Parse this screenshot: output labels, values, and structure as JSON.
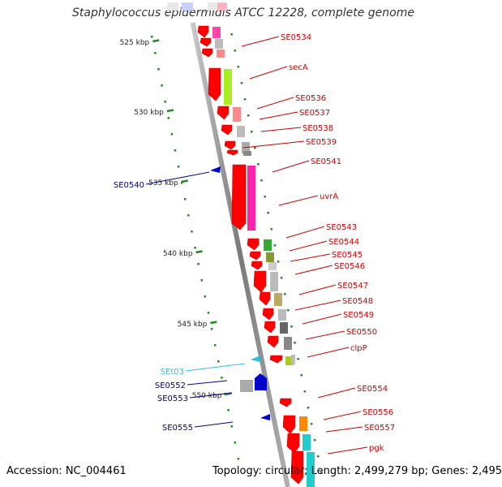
{
  "title": "Staphylococcus epidermidis ATCC 12228, complete genome",
  "footer": {
    "accession": "Accession: NC_004461",
    "summary": "Topology: circular; Length: 2,499,279 bp; Genes: 2,495"
  },
  "colors": {
    "backbone": "#8a8a8a",
    "cds_arrow": "#ff0000",
    "gene_label": "#cc0000",
    "rev_label": "#000088",
    "rna_label": "#33bbdd",
    "tick": "#228822"
  },
  "scale": {
    "ticks": [
      {
        "label": "525 kbp",
        "pos": 525
      },
      {
        "label": "530 kbp",
        "pos": 530
      },
      {
        "label": "535 kbp",
        "pos": 535
      },
      {
        "label": "540 kbp",
        "pos": 540
      },
      {
        "label": "545 kbp",
        "pos": 545
      },
      {
        "label": "550 kbp",
        "pos": 550
      }
    ]
  },
  "right_labels": [
    {
      "text": "SE0534"
    },
    {
      "text": "secA"
    },
    {
      "text": "SE0536"
    },
    {
      "text": "SE0537"
    },
    {
      "text": "SE0538"
    },
    {
      "text": "SE0539"
    },
    {
      "text": "SE0541"
    },
    {
      "text": "uvrA"
    },
    {
      "text": "SE0543"
    },
    {
      "text": "SE0544"
    },
    {
      "text": "SE0545"
    },
    {
      "text": "SE0546"
    },
    {
      "text": "SE0547"
    },
    {
      "text": "SE0548"
    },
    {
      "text": "SE0549"
    },
    {
      "text": "SE0550"
    },
    {
      "text": "clpP"
    },
    {
      "text": "SE0554"
    },
    {
      "text": "SE0556"
    },
    {
      "text": "SE0557"
    },
    {
      "text": "pgk"
    }
  ],
  "left_labels": [
    {
      "text": "SE0540",
      "kind": "rev"
    },
    {
      "text": "SEt03",
      "kind": "rna"
    },
    {
      "text": "SE0552",
      "kind": "rev"
    },
    {
      "text": "SE0553",
      "kind": "rev"
    },
    {
      "text": "SE0555",
      "kind": "rev"
    }
  ]
}
